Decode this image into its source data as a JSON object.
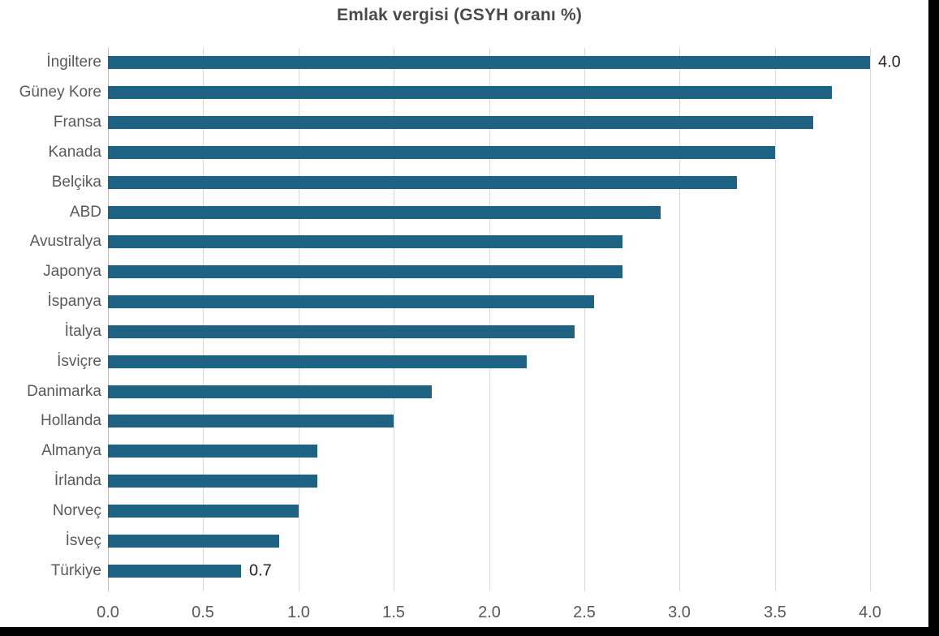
{
  "chart_data": {
    "type": "bar",
    "orientation": "horizontal",
    "title": "Emlak vergisi (GSYH oranı %)",
    "categories": [
      "İngiltere",
      "Güney Kore",
      "Fransa",
      "Kanada",
      "Belçika",
      "ABD",
      "Avustralya",
      "Japonya",
      "İspanya",
      "İtalya",
      "İsviçre",
      "Danimarka",
      "Hollanda",
      "Almanya",
      "İrlanda",
      "Norveç",
      "İsveç",
      "Türkiye"
    ],
    "values": [
      4.0,
      3.8,
      3.7,
      3.5,
      3.3,
      2.9,
      2.7,
      2.7,
      2.55,
      2.45,
      2.2,
      1.7,
      1.5,
      1.1,
      1.1,
      1.0,
      0.9,
      0.7
    ],
    "data_labels": [
      {
        "index": 0,
        "category": "İngiltere",
        "text": "4.0"
      },
      {
        "index": 17,
        "category": "Türkiye",
        "text": "0.7"
      }
    ],
    "xlabel": "",
    "ylabel": "",
    "xlim": [
      0.0,
      4.0
    ],
    "x_ticks": [
      "0.0",
      "0.5",
      "1.0",
      "1.5",
      "2.0",
      "2.5",
      "3.0",
      "3.5",
      "4.0"
    ],
    "grid": "vertical-gridlines",
    "legend": "none",
    "colors": {
      "bar": "#1E6384",
      "gridline": "#D9D9D9",
      "axis_line": "#C0C0C0",
      "title_text": "#4A4A4A",
      "axis_text": "#595959",
      "data_label_text": "#262626",
      "background": "#FFFFFF",
      "screenshot_border": "#000000"
    }
  }
}
